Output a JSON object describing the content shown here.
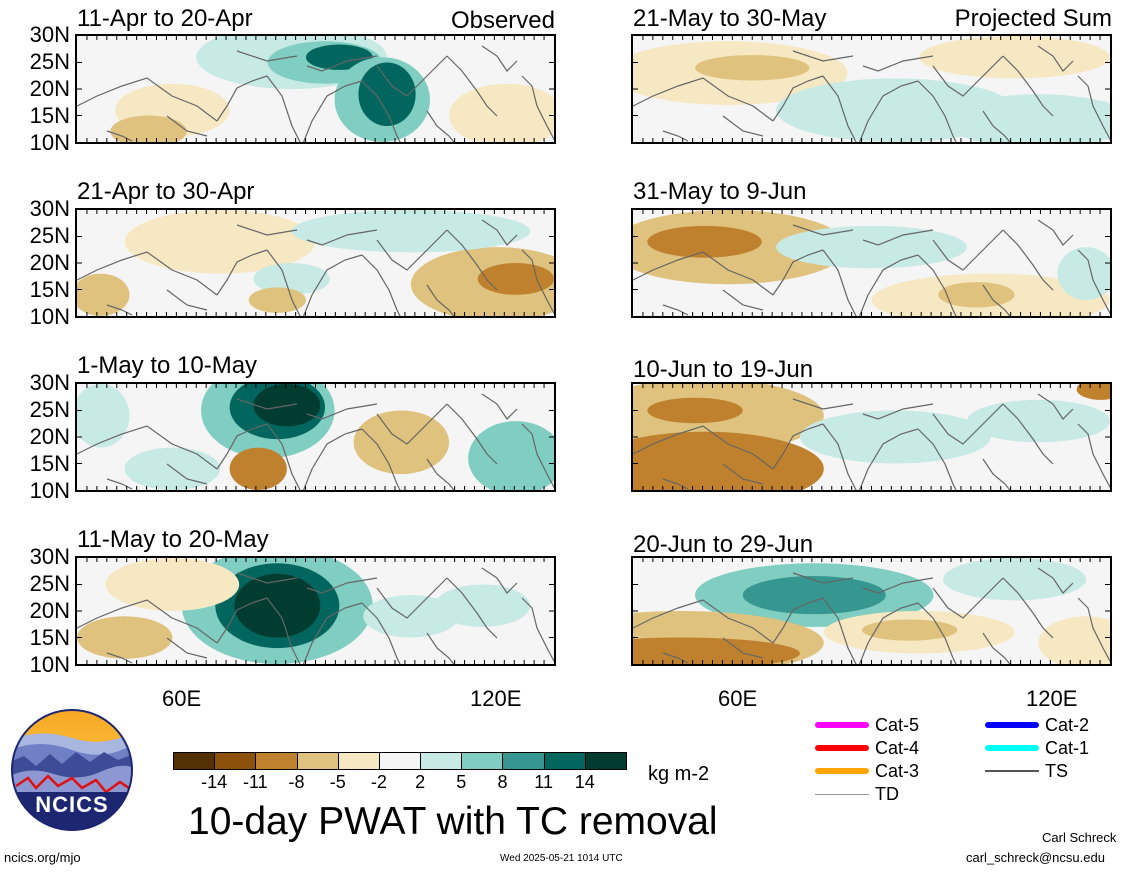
{
  "panels": {
    "left": [
      {
        "title": "11-Apr to 20-Apr",
        "tag": "Observed",
        "pattern": "a1"
      },
      {
        "title": "21-Apr to 30-Apr",
        "tag": "",
        "pattern": "a2"
      },
      {
        "title": "1-May to 10-May",
        "tag": "",
        "pattern": "a3"
      },
      {
        "title": "11-May to 20-May",
        "tag": "",
        "pattern": "a4"
      }
    ],
    "right": [
      {
        "title": "21-May to 30-May",
        "tag": "Projected Sum",
        "pattern": "b1"
      },
      {
        "title": "31-May to 9-Jun",
        "tag": "",
        "pattern": "b2"
      },
      {
        "title": "10-Jun to 19-Jun",
        "tag": "",
        "pattern": "b3"
      },
      {
        "title": "20-Jun to 29-Jun",
        "tag": "",
        "pattern": "b4"
      }
    ]
  },
  "axes": {
    "lat_labels": [
      "30N",
      "25N",
      "20N",
      "15N",
      "10N"
    ],
    "lon_labels": [
      "60E",
      "120E"
    ]
  },
  "colorbar": {
    "colors": [
      "#543005",
      "#8c510a",
      "#bf812d",
      "#dfc27d",
      "#f6e8c3",
      "#f5f5f5",
      "#c7eae5",
      "#80cdc1",
      "#35978f",
      "#01665e",
      "#003c30"
    ],
    "labels": [
      "-14",
      "-11",
      "-8",
      "-5",
      "-2",
      "2",
      "5",
      "8",
      "11",
      "14"
    ],
    "units": "kg m-2"
  },
  "legend": [
    {
      "label": "Cat-5",
      "color": "#ff00ff",
      "weight": "heavy"
    },
    {
      "label": "Cat-2",
      "color": "#0000ff",
      "weight": "heavy"
    },
    {
      "label": "Cat-4",
      "color": "#ff0000",
      "weight": "heavy"
    },
    {
      "label": "Cat-1",
      "color": "#00ffff",
      "weight": "heavy"
    },
    {
      "label": "Cat-3",
      "color": "#ffa500",
      "weight": "heavy"
    },
    {
      "label": "TS",
      "color": "#555555",
      "weight": "medium"
    },
    {
      "label": "TD",
      "color": "#999999",
      "weight": "thin"
    }
  ],
  "footer": {
    "title": "10-day PWAT with TC removal",
    "logo_text": "NCICS",
    "url": "ncics.org/mjo",
    "timestamp": "Wed 2025-05-21 1014 UTC",
    "author": "Carl Schreck",
    "email": "carl_schreck@ncsu.edu"
  }
}
